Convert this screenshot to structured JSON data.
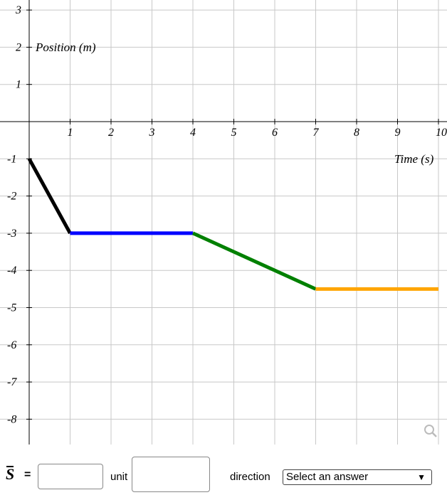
{
  "chart_data": {
    "type": "line",
    "xlabel": "Time (s)",
    "ylabel": "Position (m)",
    "xlim": [
      0,
      10
    ],
    "ylim": [
      -8.6,
      3
    ],
    "x_ticks": [
      "1",
      "2",
      "3",
      "4",
      "5",
      "6",
      "7",
      "8",
      "9",
      "10"
    ],
    "y_ticks": [
      "3",
      "2",
      "1",
      "-1",
      "-2",
      "-3",
      "-4",
      "-5",
      "-6",
      "-7",
      "-8"
    ],
    "x_tick_values": [
      1,
      2,
      3,
      4,
      5,
      6,
      7,
      8,
      9,
      10
    ],
    "y_tick_values": [
      3,
      2,
      1,
      -1,
      -2,
      -3,
      -4,
      -5,
      -6,
      -7,
      -8
    ],
    "grid": true,
    "segments": [
      {
        "x": [
          0,
          1
        ],
        "y": [
          -1,
          -3
        ],
        "color": "#000000"
      },
      {
        "x": [
          1,
          4
        ],
        "y": [
          -3,
          -3
        ],
        "color": "#0000ff"
      },
      {
        "x": [
          4,
          7
        ],
        "y": [
          -3,
          -4.5
        ],
        "color": "#008000"
      },
      {
        "x": [
          7,
          10
        ],
        "y": [
          -4.5,
          -4.5
        ],
        "color": "#ffa500"
      }
    ]
  },
  "zoom_icon": "magnifier-icon",
  "answer": {
    "symbol": "S",
    "equals": "=",
    "value": "",
    "unit_label": "unit",
    "unit_value": "",
    "direction_label": "direction",
    "direction_selected": "Select an answer"
  }
}
